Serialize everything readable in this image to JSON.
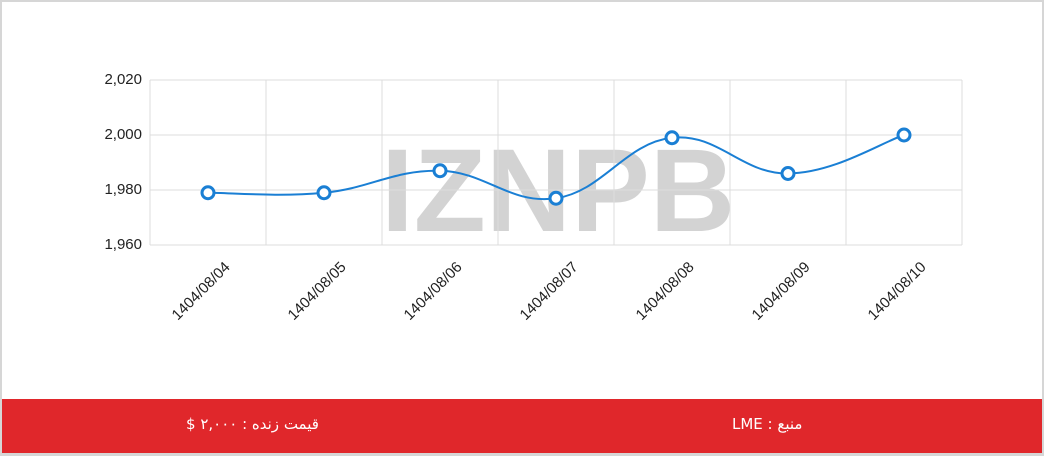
{
  "chart_data": {
    "type": "line",
    "watermark": "IZNPB",
    "categories": [
      "1404/08/04",
      "1404/08/05",
      "1404/08/06",
      "1404/08/07",
      "1404/08/08",
      "1404/08/09",
      "1404/08/10"
    ],
    "values": [
      1979,
      1979,
      1987,
      1977,
      1999,
      1986,
      2000
    ],
    "color": "#1a7fd4",
    "ylim": [
      1960,
      2020
    ],
    "yticks": [
      {
        "value": 1960,
        "label": "1,960"
      },
      {
        "value": 1980,
        "label": "1,980"
      },
      {
        "value": 2000,
        "label": "2,000"
      },
      {
        "value": 2020,
        "label": "2,020"
      }
    ],
    "grid": true
  },
  "footer": {
    "live_price": "قیمت زنده : ۲,۰۰۰ $",
    "source": "منبع : LME"
  }
}
